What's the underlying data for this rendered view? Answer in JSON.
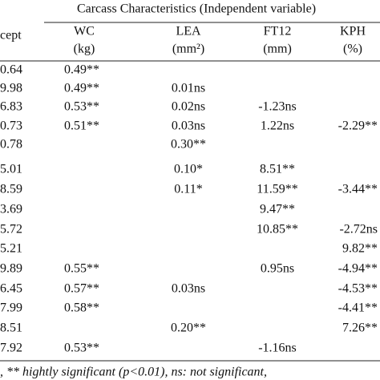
{
  "table": {
    "title": "Carcass Characteristics (Independent variable)",
    "columns": [
      [
        "cept"
      ],
      [
        "WC",
        "(kg)"
      ],
      [
        "LEA",
        "(mm²)"
      ],
      [
        "FT12",
        "(mm)"
      ],
      [
        "KPH",
        "(%)"
      ]
    ],
    "rows": [
      [
        "0.64",
        "0.49**",
        null,
        null,
        null
      ],
      [
        "9.98",
        "0.49**",
        "0.01ns",
        null,
        null
      ],
      [
        "6.83",
        "0.53**",
        "0.02ns",
        "-1.23ns",
        null
      ],
      [
        "0.73",
        "0.51**",
        "0.03ns",
        "1.22ns",
        "-2.29**"
      ],
      [
        "0.78",
        null,
        "0.30**",
        null,
        null
      ],
      [
        "5.01",
        null,
        "0.10*",
        "8.51**",
        null
      ],
      [
        "8.59",
        null,
        "0.11*",
        "11.59**",
        "-3.44**"
      ],
      [
        "3.69",
        null,
        null,
        "9.47**",
        null
      ],
      [
        "5.72",
        null,
        null,
        "10.85**",
        "-2.72ns"
      ],
      [
        "5.21",
        null,
        null,
        null,
        "9.82**"
      ],
      [
        "9.89",
        "0.55**",
        null,
        "0.95ns",
        "-4.94**"
      ],
      [
        "6.45",
        "0.57**",
        "0.03ns",
        null,
        "-4.53**"
      ],
      [
        "7.99",
        "0.58**",
        null,
        null,
        "-4.41**"
      ],
      [
        "8.51",
        null,
        "0.20**",
        null,
        "7.26**"
      ],
      [
        "7.92",
        "0.53**",
        null,
        "-1.16ns",
        null
      ]
    ],
    "footnote": ", ** hightly significant (p<0.01),   ns: not significant,"
  }
}
